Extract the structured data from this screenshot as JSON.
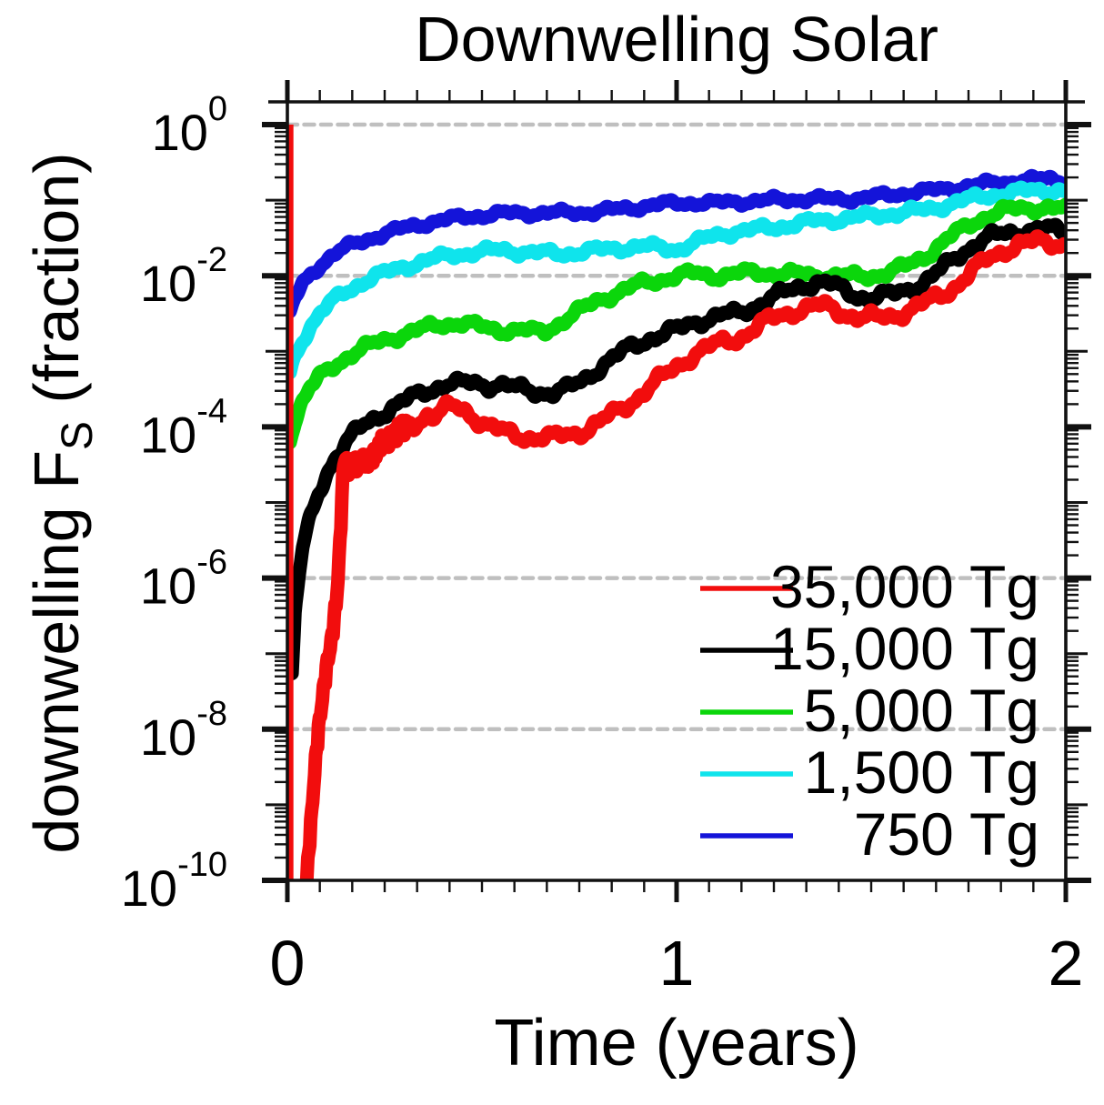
{
  "figure": {
    "title": "Downwelling Solar",
    "x_axis": {
      "label": "Time (years)",
      "tick_labels": [
        "0",
        "1",
        "2"
      ]
    },
    "y_axis": {
      "label_prefix": "downwelling F",
      "label_sub": "S",
      "label_suffix": " (fraction)",
      "tick_base": "10",
      "tick_exponents": [
        "0",
        "-2",
        "-4",
        "-6",
        "-8",
        "-10"
      ]
    },
    "legend": [
      {
        "label": "35,000 Tg",
        "color": "#f20d0d"
      },
      {
        "label": "15,000 Tg",
        "color": "#000000"
      },
      {
        "label": "5,000 Tg",
        "color": "#0bd60b"
      },
      {
        "label": "1,500 Tg",
        "color": "#0fe4ec"
      },
      {
        "label": "750 Tg",
        "color": "#1414d9"
      }
    ],
    "colors": {
      "grid": "#bfbfbf",
      "axis": "#111111"
    }
  },
  "chart_data": {
    "type": "line",
    "title": "Downwelling Solar",
    "xlabel": "Time (years)",
    "ylabel": "downwelling F_S (fraction)",
    "x_range": [
      0,
      2
    ],
    "y_scale": "log10",
    "y_range_exponents": [
      -10,
      0.3
    ],
    "x_major_ticks": [
      0,
      1,
      2
    ],
    "x_minor_ticks_per_unit": 12,
    "y_labeled_exponents": [
      0,
      -2,
      -4,
      -6,
      -8,
      -10
    ],
    "gridline_exponents": [
      0,
      -2,
      -6,
      -8
    ],
    "grid_on": true,
    "legend_position": "lower right",
    "series": [
      {
        "name": "750 Tg",
        "injection_Tg": 750,
        "color": "#1414d9",
        "wiggle": 0.032,
        "points": [
          [
            0.007,
            -2.5
          ],
          [
            0.02,
            -2.3
          ],
          [
            0.04,
            -2.1
          ],
          [
            0.06,
            -1.97
          ],
          [
            0.09,
            -1.83
          ],
          [
            0.12,
            -1.72
          ],
          [
            0.15,
            -1.63
          ],
          [
            0.18,
            -1.56
          ],
          [
            0.22,
            -1.49
          ],
          [
            0.26,
            -1.43
          ],
          [
            0.3,
            -1.37
          ],
          [
            0.34,
            -1.32
          ],
          [
            0.38,
            -1.28
          ],
          [
            0.42,
            -1.25
          ],
          [
            0.46,
            -1.22
          ],
          [
            0.5,
            -1.2
          ],
          [
            0.55,
            -1.18
          ],
          [
            0.6,
            -1.17
          ],
          [
            0.65,
            -1.17
          ],
          [
            0.7,
            -1.17
          ],
          [
            0.76,
            -1.16
          ],
          [
            0.8,
            -1.15
          ],
          [
            0.85,
            -1.12
          ],
          [
            0.9,
            -1.09
          ],
          [
            0.95,
            -1.06
          ],
          [
            1.0,
            -1.04
          ],
          [
            1.05,
            -1.03
          ],
          [
            1.1,
            -1.04
          ],
          [
            1.15,
            -1.02
          ],
          [
            1.2,
            -1.01
          ],
          [
            1.25,
            -1.0
          ],
          [
            1.3,
            -0.99
          ],
          [
            1.35,
            -0.98
          ],
          [
            1.4,
            -0.99
          ],
          [
            1.45,
            -0.98
          ],
          [
            1.5,
            -0.96
          ],
          [
            1.55,
            -0.93
          ],
          [
            1.6,
            -0.9
          ],
          [
            1.64,
            -0.88
          ],
          [
            1.68,
            -0.86
          ],
          [
            1.72,
            -0.83
          ],
          [
            1.76,
            -0.81
          ],
          [
            1.8,
            -0.78
          ],
          [
            1.84,
            -0.76
          ],
          [
            1.88,
            -0.74
          ],
          [
            1.92,
            -0.73
          ],
          [
            1.96,
            -0.72
          ],
          [
            2.0,
            -0.74
          ]
        ]
      },
      {
        "name": "1,500 Tg",
        "injection_Tg": 1500,
        "color": "#0fe4ec",
        "wiggle": 0.038,
        "points": [
          [
            0.007,
            -3.3
          ],
          [
            0.02,
            -3.05
          ],
          [
            0.04,
            -2.83
          ],
          [
            0.06,
            -2.66
          ],
          [
            0.09,
            -2.47
          ],
          [
            0.12,
            -2.32
          ],
          [
            0.15,
            -2.21
          ],
          [
            0.18,
            -2.12
          ],
          [
            0.22,
            -2.02
          ],
          [
            0.26,
            -1.95
          ],
          [
            0.3,
            -1.88
          ],
          [
            0.34,
            -1.82
          ],
          [
            0.38,
            -1.77
          ],
          [
            0.42,
            -1.73
          ],
          [
            0.46,
            -1.7
          ],
          [
            0.5,
            -1.68
          ],
          [
            0.55,
            -1.66
          ],
          [
            0.6,
            -1.68
          ],
          [
            0.65,
            -1.7
          ],
          [
            0.7,
            -1.71
          ],
          [
            0.76,
            -1.68
          ],
          [
            0.8,
            -1.66
          ],
          [
            0.84,
            -1.64
          ],
          [
            0.88,
            -1.62
          ],
          [
            0.92,
            -1.61
          ],
          [
            0.96,
            -1.63
          ],
          [
            1.0,
            -1.65
          ],
          [
            1.04,
            -1.58
          ],
          [
            1.08,
            -1.5
          ],
          [
            1.12,
            -1.44
          ],
          [
            1.16,
            -1.41
          ],
          [
            1.2,
            -1.39
          ],
          [
            1.25,
            -1.36
          ],
          [
            1.3,
            -1.32
          ],
          [
            1.35,
            -1.28
          ],
          [
            1.4,
            -1.26
          ],
          [
            1.45,
            -1.23
          ],
          [
            1.5,
            -1.21
          ],
          [
            1.55,
            -1.18
          ],
          [
            1.6,
            -1.15
          ],
          [
            1.64,
            -1.13
          ],
          [
            1.68,
            -1.08
          ],
          [
            1.72,
            -1.02
          ],
          [
            1.76,
            -0.98
          ],
          [
            1.8,
            -0.94
          ],
          [
            1.84,
            -0.91
          ],
          [
            1.88,
            -0.89
          ],
          [
            1.92,
            -0.87
          ],
          [
            1.96,
            -0.86
          ],
          [
            2.0,
            -0.88
          ]
        ]
      },
      {
        "name": "5,000 Tg",
        "injection_Tg": 5000,
        "color": "#0bd60b",
        "wiggle": 0.042,
        "points": [
          [
            0.007,
            -4.15
          ],
          [
            0.02,
            -3.9
          ],
          [
            0.04,
            -3.65
          ],
          [
            0.06,
            -3.48
          ],
          [
            0.08,
            -3.36
          ],
          [
            0.1,
            -3.27
          ],
          [
            0.13,
            -3.15
          ],
          [
            0.16,
            -3.05
          ],
          [
            0.2,
            -2.95
          ],
          [
            0.25,
            -2.85
          ],
          [
            0.3,
            -2.77
          ],
          [
            0.35,
            -2.7
          ],
          [
            0.4,
            -2.64
          ],
          [
            0.44,
            -2.62
          ],
          [
            0.48,
            -2.66
          ],
          [
            0.52,
            -2.7
          ],
          [
            0.56,
            -2.72
          ],
          [
            0.6,
            -2.72
          ],
          [
            0.63,
            -2.74
          ],
          [
            0.66,
            -2.74
          ],
          [
            0.7,
            -2.62
          ],
          [
            0.76,
            -2.44
          ],
          [
            0.8,
            -2.32
          ],
          [
            0.85,
            -2.22
          ],
          [
            0.9,
            -2.12
          ],
          [
            0.95,
            -2.06
          ],
          [
            1.0,
            -2.0
          ],
          [
            1.05,
            -1.97
          ],
          [
            1.1,
            -2.0
          ],
          [
            1.15,
            -1.98
          ],
          [
            1.2,
            -1.95
          ],
          [
            1.25,
            -1.97
          ],
          [
            1.3,
            -1.98
          ],
          [
            1.35,
            -1.99
          ],
          [
            1.4,
            -2.0
          ],
          [
            1.45,
            -2.01
          ],
          [
            1.5,
            -2.0
          ],
          [
            1.55,
            -1.95
          ],
          [
            1.6,
            -1.85
          ],
          [
            1.65,
            -1.7
          ],
          [
            1.7,
            -1.5
          ],
          [
            1.75,
            -1.33
          ],
          [
            1.8,
            -1.2
          ],
          [
            1.85,
            -1.13
          ],
          [
            1.9,
            -1.1
          ],
          [
            1.95,
            -1.1
          ],
          [
            2.0,
            -1.13
          ]
        ]
      },
      {
        "name": "15,000 Tg",
        "injection_Tg": 15000,
        "color": "#000000",
        "wiggle": 0.05,
        "points": [
          [
            0.012,
            -7.3
          ],
          [
            0.02,
            -6.4
          ],
          [
            0.04,
            -5.6
          ],
          [
            0.06,
            -5.2
          ],
          [
            0.08,
            -4.87
          ],
          [
            0.1,
            -4.62
          ],
          [
            0.12,
            -4.42
          ],
          [
            0.15,
            -4.22
          ],
          [
            0.18,
            -4.05
          ],
          [
            0.21,
            -3.93
          ],
          [
            0.24,
            -3.83
          ],
          [
            0.27,
            -3.74
          ],
          [
            0.3,
            -3.66
          ],
          [
            0.33,
            -3.59
          ],
          [
            0.36,
            -3.52
          ],
          [
            0.39,
            -3.46
          ],
          [
            0.42,
            -3.42
          ],
          [
            0.45,
            -3.44
          ],
          [
            0.48,
            -3.41
          ],
          [
            0.51,
            -3.45
          ],
          [
            0.54,
            -3.43
          ],
          [
            0.57,
            -3.47
          ],
          [
            0.6,
            -3.5
          ],
          [
            0.64,
            -3.53
          ],
          [
            0.68,
            -3.55
          ],
          [
            0.72,
            -3.5
          ],
          [
            0.76,
            -3.38
          ],
          [
            0.8,
            -3.22
          ],
          [
            0.84,
            -3.08
          ],
          [
            0.88,
            -2.95
          ],
          [
            0.92,
            -2.85
          ],
          [
            0.96,
            -2.78
          ],
          [
            1.0,
            -2.72
          ],
          [
            1.04,
            -2.62
          ],
          [
            1.08,
            -2.57
          ],
          [
            1.12,
            -2.52
          ],
          [
            1.16,
            -2.5
          ],
          [
            1.2,
            -2.4
          ],
          [
            1.24,
            -2.3
          ],
          [
            1.28,
            -2.22
          ],
          [
            1.32,
            -2.14
          ],
          [
            1.36,
            -2.08
          ],
          [
            1.4,
            -2.12
          ],
          [
            1.44,
            -2.22
          ],
          [
            1.48,
            -2.28
          ],
          [
            1.52,
            -2.28
          ],
          [
            1.56,
            -2.24
          ],
          [
            1.6,
            -2.16
          ],
          [
            1.64,
            -2.08
          ],
          [
            1.68,
            -1.92
          ],
          [
            1.72,
            -1.74
          ],
          [
            1.76,
            -1.6
          ],
          [
            1.8,
            -1.5
          ],
          [
            1.85,
            -1.43
          ],
          [
            1.9,
            -1.4
          ],
          [
            1.95,
            -1.39
          ],
          [
            2.0,
            -1.4
          ]
        ]
      },
      {
        "name": "35,000 Tg",
        "injection_Tg": 35000,
        "color": "#f20d0d",
        "wiggle": 0.055,
        "spiky": true,
        "drop_line": {
          "t": 0.008,
          "from_exp": 0,
          "to_exp": -10
        },
        "points": [
          [
            0.045,
            -10.3
          ],
          [
            0.055,
            -9.55
          ],
          [
            0.065,
            -8.85
          ],
          [
            0.075,
            -8.25
          ],
          [
            0.085,
            -7.75
          ],
          [
            0.095,
            -7.35
          ],
          [
            0.105,
            -7.02
          ],
          [
            0.115,
            -6.75
          ],
          [
            0.125,
            -6.42
          ],
          [
            0.13,
            -6.1
          ],
          [
            0.135,
            -5.6
          ],
          [
            0.14,
            -5.0
          ],
          [
            0.145,
            -4.55
          ],
          [
            0.15,
            -4.45
          ],
          [
            0.16,
            -4.55
          ],
          [
            0.17,
            -4.47
          ],
          [
            0.18,
            -4.52
          ],
          [
            0.2,
            -4.42
          ],
          [
            0.22,
            -4.34
          ],
          [
            0.25,
            -4.22
          ],
          [
            0.28,
            -4.1
          ],
          [
            0.31,
            -4.0
          ],
          [
            0.34,
            -3.92
          ],
          [
            0.36,
            -3.82
          ],
          [
            0.38,
            -3.86
          ],
          [
            0.4,
            -3.79
          ],
          [
            0.42,
            -3.73
          ],
          [
            0.44,
            -3.75
          ],
          [
            0.46,
            -3.79
          ],
          [
            0.49,
            -3.9
          ],
          [
            0.52,
            -4.0
          ],
          [
            0.56,
            -4.08
          ],
          [
            0.6,
            -4.12
          ],
          [
            0.64,
            -4.14
          ],
          [
            0.68,
            -4.15
          ],
          [
            0.72,
            -4.1
          ],
          [
            0.76,
            -4.05
          ],
          [
            0.8,
            -3.95
          ],
          [
            0.84,
            -3.82
          ],
          [
            0.88,
            -3.68
          ],
          [
            0.92,
            -3.52
          ],
          [
            0.96,
            -3.36
          ],
          [
            1.0,
            -3.2
          ],
          [
            1.04,
            -3.05
          ],
          [
            1.08,
            -2.95
          ],
          [
            1.12,
            -2.88
          ],
          [
            1.16,
            -2.82
          ],
          [
            1.2,
            -2.7
          ],
          [
            1.24,
            -2.58
          ],
          [
            1.28,
            -2.5
          ],
          [
            1.32,
            -2.44
          ],
          [
            1.36,
            -2.4
          ],
          [
            1.4,
            -2.43
          ],
          [
            1.44,
            -2.51
          ],
          [
            1.48,
            -2.56
          ],
          [
            1.52,
            -2.56
          ],
          [
            1.56,
            -2.52
          ],
          [
            1.6,
            -2.45
          ],
          [
            1.64,
            -2.36
          ],
          [
            1.68,
            -2.26
          ],
          [
            1.72,
            -2.12
          ],
          [
            1.76,
            -1.94
          ],
          [
            1.8,
            -1.78
          ],
          [
            1.84,
            -1.66
          ],
          [
            1.88,
            -1.58
          ],
          [
            1.92,
            -1.56
          ],
          [
            1.96,
            -1.56
          ],
          [
            2.0,
            -1.58
          ]
        ]
      }
    ]
  }
}
